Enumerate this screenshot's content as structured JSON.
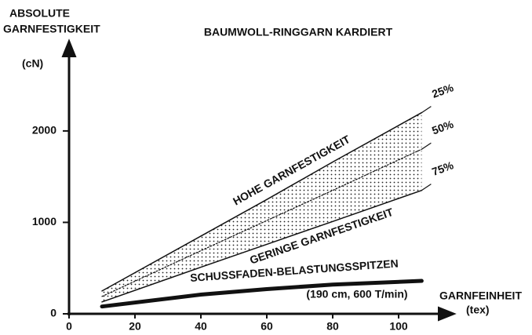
{
  "chart_data": {
    "type": "line",
    "title": "BAUMWOLL-RINGGARN KARDIERT",
    "y_label": [
      "ABSOLUTE",
      "GARNFESTIGKEIT"
    ],
    "y_unit": "(cN)",
    "x_label": "GARNFEINHEIT",
    "x_unit": "(tex)",
    "x": [
      10,
      40,
      60,
      80,
      107
    ],
    "xlim": [
      0,
      115
    ],
    "xticks": [
      0,
      20,
      40,
      60,
      80,
      100
    ],
    "ylim": [
      0,
      2900
    ],
    "yticks": [
      0,
      1000,
      2000
    ],
    "series": [
      {
        "name": "25%",
        "color": "#111111",
        "values": [
          250,
          850,
          1250,
          1660,
          2200
        ]
      },
      {
        "name": "50%",
        "color": "#111111",
        "values": [
          190,
          690,
          1020,
          1350,
          1800
        ]
      },
      {
        "name": "75%",
        "color": "#111111",
        "values": [
          130,
          510,
          760,
          1010,
          1350
        ]
      },
      {
        "name": "SCHUSSFADEN-BELASTUNGSSPITZEN",
        "color": "#111111",
        "values": [
          80,
          210,
          270,
          320,
          360
        ]
      }
    ],
    "annotations": [
      "HOHE GARNFESTIGKEIT",
      "GERINGE GARNFESTIGKEIT",
      "(190 cm, 600 T/min)"
    ]
  }
}
